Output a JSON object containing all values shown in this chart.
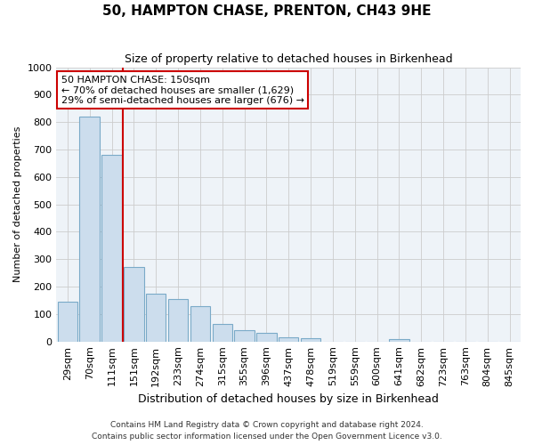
{
  "title": "50, HAMPTON CHASE, PRENTON, CH43 9HE",
  "subtitle": "Size of property relative to detached houses in Birkenhead",
  "xlabel": "Distribution of detached houses by size in Birkenhead",
  "ylabel": "Number of detached properties",
  "bar_color": "#ccdded",
  "bar_edge_color": "#7aaac8",
  "grid_color": "#cccccc",
  "bg_color": "#eef3f8",
  "property_line_color": "#cc0000",
  "annotation_text": "50 HAMPTON CHASE: 150sqm\n← 70% of detached houses are smaller (1,629)\n29% of semi-detached houses are larger (676) →",
  "annotation_box_color": "#ffffff",
  "annotation_border_color": "#cc0000",
  "categories": [
    "29sqm",
    "70sqm",
    "111sqm",
    "151sqm",
    "192sqm",
    "233sqm",
    "274sqm",
    "315sqm",
    "355sqm",
    "396sqm",
    "437sqm",
    "478sqm",
    "519sqm",
    "559sqm",
    "600sqm",
    "641sqm",
    "682sqm",
    "723sqm",
    "763sqm",
    "804sqm",
    "845sqm"
  ],
  "values": [
    145,
    820,
    680,
    270,
    175,
    155,
    130,
    65,
    40,
    30,
    15,
    12,
    0,
    0,
    0,
    10,
    0,
    0,
    0,
    0,
    0
  ],
  "ylim": [
    0,
    1000
  ],
  "yticks": [
    0,
    100,
    200,
    300,
    400,
    500,
    600,
    700,
    800,
    900,
    1000
  ],
  "property_line_x": 2.5,
  "footer1": "Contains HM Land Registry data © Crown copyright and database right 2024.",
  "footer2": "Contains public sector information licensed under the Open Government Licence v3.0."
}
